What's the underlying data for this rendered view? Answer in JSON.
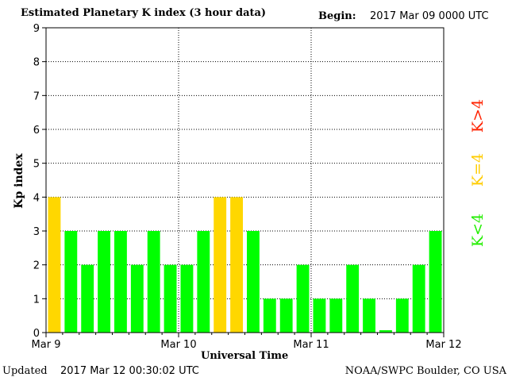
{
  "header": {
    "title": "Estimated Planetary K index (3 hour data)",
    "begin_label": "Begin:",
    "begin_value": "2017 Mar 09 0000 UTC"
  },
  "footer": {
    "updated_label": "Updated",
    "updated_value": "2017 Mar 12 00:30:02 UTC",
    "credit": "NOAA/SWPC Boulder, CO USA"
  },
  "legend": {
    "gt4": "K>4",
    "eq4": "K=4",
    "lt4": "K<4"
  },
  "colors": {
    "below4": "#00ff00",
    "equal4": "#ffd700",
    "above4": "#ff0000",
    "grid": "#000000"
  },
  "chart_data": {
    "type": "bar",
    "title": "Estimated Planetary K index (3 hour data)",
    "xlabel": "Universal Time",
    "ylabel": "Kp index",
    "ylim": [
      0,
      9
    ],
    "yticks": [
      0,
      1,
      2,
      3,
      4,
      5,
      6,
      7,
      8,
      9
    ],
    "day_labels": [
      "Mar 9",
      "Mar 10",
      "Mar 11",
      "Mar 12"
    ],
    "values": [
      4,
      3,
      2,
      3,
      3,
      2,
      3,
      2,
      2,
      3,
      4,
      4,
      3,
      1,
      1,
      2,
      1,
      1,
      2,
      1,
      0.07,
      1,
      2,
      3
    ],
    "grid": true
  }
}
